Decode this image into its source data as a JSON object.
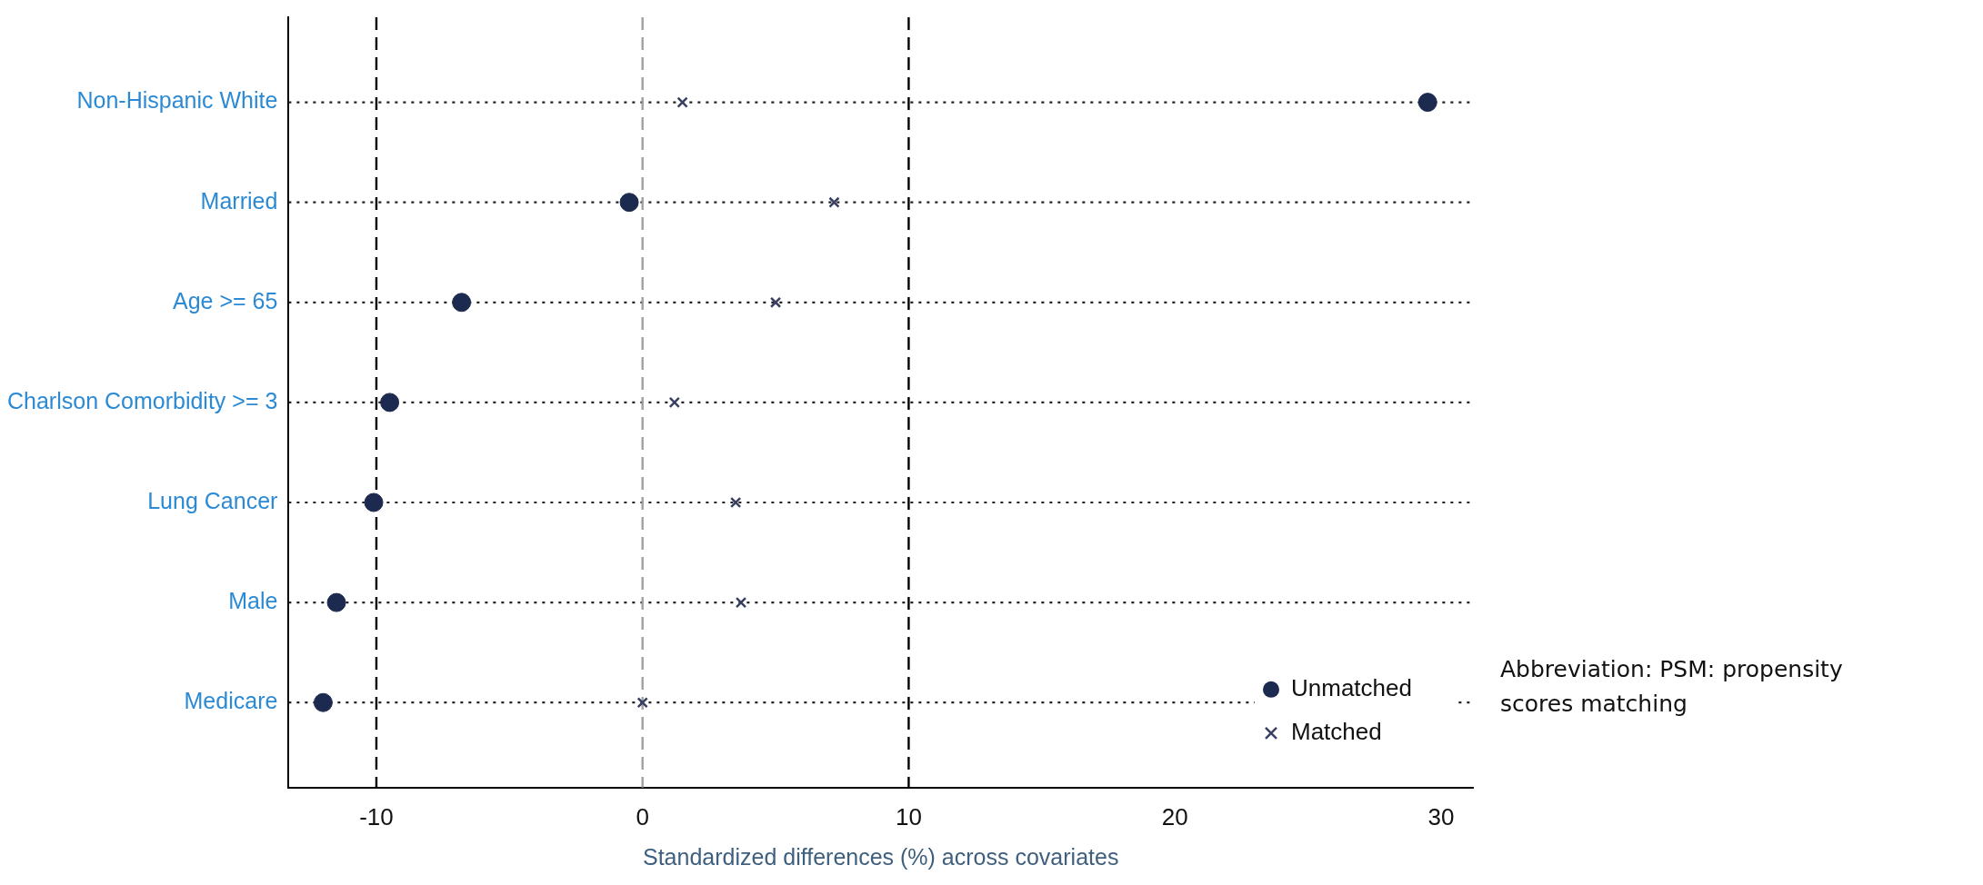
{
  "chart_data": {
    "type": "scatter",
    "orientation": "horizontal",
    "xlabel": "Standardized differences (%) across covariates",
    "categories": [
      "Non-Hispanic White",
      "Married",
      "Age >= 65",
      "Charlson Comorbidity >= 3",
      "Lung Cancer",
      "Male",
      "Medicare"
    ],
    "series": [
      {
        "name": "Unmatched",
        "color": "#1c2a4f",
        "marker": "circle",
        "values": [
          29.5,
          -0.5,
          -6.8,
          -9.5,
          -10.1,
          -11.5,
          -12.0
        ]
      },
      {
        "name": "Matched",
        "color": "#3a4062",
        "marker": "cross",
        "values": [
          1.5,
          7.2,
          5.0,
          1.2,
          3.5,
          3.7,
          0
        ]
      }
    ],
    "xlim": [
      -13.3,
      31.2
    ],
    "xticks": [
      -10,
      0,
      10,
      20,
      30
    ],
    "ref_lines": [
      {
        "axis": "x",
        "value": -10,
        "color": "#000000",
        "line_style": "dashed"
      },
      {
        "axis": "x",
        "value": 0,
        "color": "#a0a0a0",
        "line_style": "dashed"
      },
      {
        "axis": "x",
        "value": 10,
        "color": "#000000",
        "line_style": "dashed"
      }
    ],
    "grid": "y",
    "line_style": "dotted",
    "legend": "bottom right",
    "annotations": [
      "Abbreviation: PSM: propensity scores matching"
    ]
  }
}
